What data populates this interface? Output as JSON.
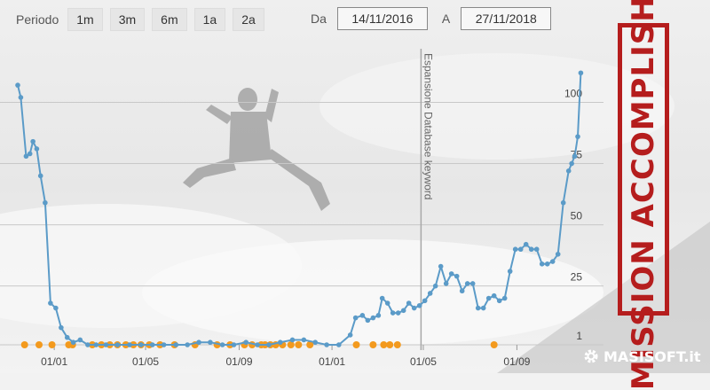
{
  "toolbar": {
    "period_label": "Periodo",
    "ranges": [
      "1m",
      "3m",
      "6m",
      "1a",
      "2a"
    ],
    "from_label": "Da",
    "from_value": "14/11/2016",
    "to_label": "A",
    "to_value": "27/11/2018"
  },
  "stamp_text": "MISSION ACCOMPLISHED",
  "logo_text": "MASISOFT.it",
  "colors": {
    "line": "#5b9bc8",
    "marker": "#f39a1e",
    "stamp": "#b51d1d"
  },
  "chart_data": {
    "type": "line",
    "title": "",
    "xlabel": "",
    "ylabel": "",
    "y_axis": "position (inverted, 1 at bottom)",
    "ylim": [
      1,
      115
    ],
    "xlim": [
      "2016-11-14",
      "2018-11-27"
    ],
    "x_ticks": [
      {
        "date": "2017-01-01",
        "label": "01/01"
      },
      {
        "date": "2017-05-01",
        "label": "01/05"
      },
      {
        "date": "2017-09-01",
        "label": "01/09"
      },
      {
        "date": "2018-01-01",
        "label": "01/01"
      },
      {
        "date": "2018-05-01",
        "label": "01/05"
      },
      {
        "date": "2018-09-01",
        "label": "01/09"
      }
    ],
    "y_ticks": [
      1,
      25,
      50,
      75,
      100
    ],
    "annotation": {
      "date": "2018-04-28",
      "text": "Espansione Database keyword"
    },
    "series": [
      {
        "points": [
          [
            "2016-11-14",
            107
          ],
          [
            "2016-11-18",
            102
          ],
          [
            "2016-11-25",
            78
          ],
          [
            "2016-11-30",
            79
          ],
          [
            "2016-12-04",
            84
          ],
          [
            "2016-12-09",
            81
          ],
          [
            "2016-12-14",
            70
          ],
          [
            "2016-12-20",
            59
          ],
          [
            "2016-12-27",
            18
          ],
          [
            "2017-01-03",
            16
          ],
          [
            "2017-01-10",
            8
          ],
          [
            "2017-01-18",
            4
          ],
          [
            "2017-01-26",
            2
          ],
          [
            "2017-02-04",
            3
          ],
          [
            "2017-02-14",
            1
          ],
          [
            "2017-02-25",
            1
          ],
          [
            "2017-03-10",
            1
          ],
          [
            "2017-03-25",
            1
          ],
          [
            "2017-04-10",
            1
          ],
          [
            "2017-04-25",
            1
          ],
          [
            "2017-05-10",
            1
          ],
          [
            "2017-05-25",
            1
          ],
          [
            "2017-06-10",
            1
          ],
          [
            "2017-06-25",
            1
          ],
          [
            "2017-07-10",
            2
          ],
          [
            "2017-07-25",
            2
          ],
          [
            "2017-08-10",
            1
          ],
          [
            "2017-08-25",
            1
          ],
          [
            "2017-09-10",
            2
          ],
          [
            "2017-09-25",
            1
          ],
          [
            "2017-10-10",
            1
          ],
          [
            "2017-10-25",
            2
          ],
          [
            "2017-11-10",
            3
          ],
          [
            "2017-11-25",
            3
          ],
          [
            "2017-12-10",
            2
          ],
          [
            "2017-12-25",
            1
          ],
          [
            "2018-01-10",
            1
          ],
          [
            "2018-01-25",
            5
          ],
          [
            "2018-02-01",
            12
          ],
          [
            "2018-02-10",
            13
          ],
          [
            "2018-02-17",
            11
          ],
          [
            "2018-02-24",
            12
          ],
          [
            "2018-03-03",
            13
          ],
          [
            "2018-03-08",
            20
          ],
          [
            "2018-03-15",
            18
          ],
          [
            "2018-03-22",
            14
          ],
          [
            "2018-03-29",
            14
          ],
          [
            "2018-04-05",
            15
          ],
          [
            "2018-04-12",
            18
          ],
          [
            "2018-04-19",
            16
          ],
          [
            "2018-04-26",
            17
          ],
          [
            "2018-05-03",
            19
          ],
          [
            "2018-05-10",
            22
          ],
          [
            "2018-05-17",
            25
          ],
          [
            "2018-05-24",
            33
          ],
          [
            "2018-05-31",
            26
          ],
          [
            "2018-06-07",
            30
          ],
          [
            "2018-06-14",
            29
          ],
          [
            "2018-06-21",
            23
          ],
          [
            "2018-06-28",
            26
          ],
          [
            "2018-07-05",
            26
          ],
          [
            "2018-07-12",
            16
          ],
          [
            "2018-07-19",
            16
          ],
          [
            "2018-07-26",
            20
          ],
          [
            "2018-08-02",
            21
          ],
          [
            "2018-08-09",
            19
          ],
          [
            "2018-08-16",
            20
          ],
          [
            "2018-08-23",
            31
          ],
          [
            "2018-08-30",
            40
          ],
          [
            "2018-09-06",
            40
          ],
          [
            "2018-09-13",
            42
          ],
          [
            "2018-09-20",
            40
          ],
          [
            "2018-09-27",
            40
          ],
          [
            "2018-10-04",
            34
          ],
          [
            "2018-10-11",
            34
          ],
          [
            "2018-10-18",
            35
          ],
          [
            "2018-10-25",
            38
          ],
          [
            "2018-11-01",
            59
          ],
          [
            "2018-11-08",
            72
          ],
          [
            "2018-11-12",
            75
          ],
          [
            "2018-11-16",
            78
          ],
          [
            "2018-11-20",
            86
          ],
          [
            "2018-11-24",
            112
          ]
        ]
      }
    ],
    "markers": [
      "2016-11-23",
      "2016-12-12",
      "2016-12-29",
      "2017-01-20",
      "2017-01-25",
      "2017-02-20",
      "2017-03-04",
      "2017-03-15",
      "2017-03-25",
      "2017-04-05",
      "2017-04-15",
      "2017-04-25",
      "2017-05-06",
      "2017-05-20",
      "2017-06-08",
      "2017-07-05",
      "2017-08-03",
      "2017-08-20",
      "2017-09-08",
      "2017-09-18",
      "2017-09-30",
      "2017-10-05",
      "2017-10-12",
      "2017-10-19",
      "2017-10-28",
      "2017-11-08",
      "2017-11-18",
      "2017-12-03",
      "2018-02-02",
      "2018-02-24",
      "2018-03-10",
      "2018-03-18",
      "2018-03-28",
      "2018-08-02"
    ]
  }
}
